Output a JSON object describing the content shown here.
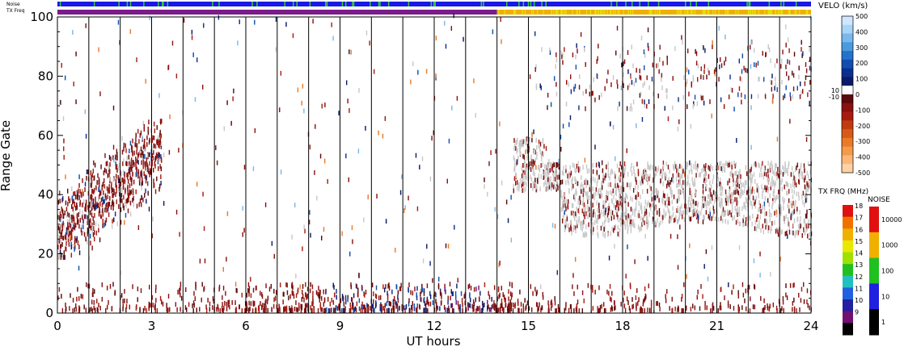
{
  "chart_data": {
    "type": "heatmap",
    "panel_labels": {
      "noise": "Noise",
      "tx_freq": "TX Freq"
    },
    "xlabel": "UT hours",
    "ylabel": "Range Gate",
    "xlim": [
      0,
      24
    ],
    "ylim": [
      0,
      100
    ],
    "x_ticks": [
      "0",
      "3",
      "6",
      "9",
      "12",
      "15",
      "18",
      "21",
      "24"
    ],
    "y_ticks": [
      "0",
      "20",
      "40",
      "60",
      "80",
      "100"
    ],
    "hour_lines": [
      1,
      2,
      3,
      4,
      5,
      6,
      7,
      8,
      9,
      10,
      11,
      12,
      13,
      14,
      15,
      16,
      17,
      18,
      19,
      20,
      21,
      22,
      23
    ],
    "regions": [
      {
        "name": "early-scatter",
        "x": [
          0.05,
          1.0
        ],
        "y": [
          18,
          62
        ]
      },
      {
        "name": "diagonal-band",
        "x": [
          0.9,
          3.3
        ],
        "y": [
          22,
          64
        ]
      },
      {
        "name": "ground-scatter-band",
        "x": [
          14.5,
          24
        ],
        "y": [
          25,
          58
        ]
      },
      {
        "name": "upper-scatter",
        "x": [
          15.2,
          24
        ],
        "y": [
          60,
          94
        ]
      },
      {
        "name": "low-range-echoes",
        "x": [
          0,
          24
        ],
        "y": [
          0,
          9
        ]
      }
    ],
    "noise_bar": {
      "color": "#1818e8",
      "speckle_color": "#30d030"
    },
    "txfreq_bar": {
      "segments": [
        {
          "x": [
            0,
            14
          ],
          "color": "#7a1d8a"
        },
        {
          "x": [
            14,
            24
          ],
          "color": "#f0b000"
        }
      ]
    },
    "velocity_scale": {
      "title": "VELO (km/s)",
      "ticks": [
        "500",
        "400",
        "300",
        "200",
        "100",
        "0",
        "-100",
        "-200",
        "-300",
        "-400",
        "-500"
      ],
      "side_ticks": [
        "10",
        "-10"
      ],
      "colors": [
        "#cfe8ff",
        "#a8d4f7",
        "#78b8ec",
        "#4a9ae0",
        "#2472cc",
        "#0f4fb0",
        "#0a2f8e",
        "#0a1a66",
        "#ffffff",
        "#5a0a0a",
        "#8b1010",
        "#a81c10",
        "#c23a10",
        "#d85a18",
        "#e87a2a",
        "#f49a4a",
        "#fbb77a",
        "#fdd3a6"
      ]
    },
    "freq_scale": {
      "title": "TX FRQ (MHz)",
      "ticks": [
        "18",
        "17",
        "16",
        "15",
        "14",
        "13",
        "12",
        "11",
        "10",
        "9"
      ],
      "colors": [
        "#e01010",
        "#f07000",
        "#f0b000",
        "#e8e800",
        "#a0e000",
        "#20c020",
        "#20c0c0",
        "#2060e0",
        "#2020a0",
        "#701070",
        "#000000"
      ]
    },
    "noise_scale": {
      "title": "NOISE",
      "ticks": [
        "10000",
        "1000",
        "100",
        "10",
        "1"
      ],
      "colors": [
        "#e01010",
        "#f0b000",
        "#20c020",
        "#2020e0",
        "#000000"
      ]
    }
  }
}
